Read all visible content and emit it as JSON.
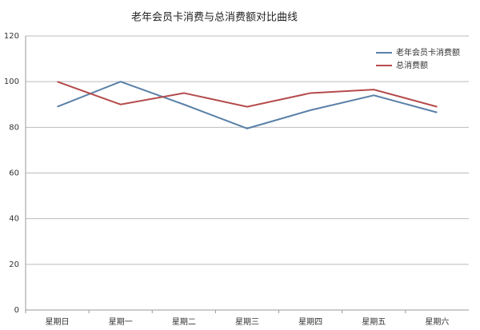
{
  "chart_data": {
    "type": "line",
    "title": "老年会员卡消费与总消费额对比曲线",
    "categories": [
      "星期日",
      "星期一",
      "星期二",
      "星期三",
      "星期四",
      "星期五",
      "星期六"
    ],
    "series": [
      {
        "name": "老年会员卡消费额",
        "color": "#5a80a8",
        "values": [
          89,
          100,
          90,
          79.5,
          87.5,
          94,
          86.5
        ]
      },
      {
        "name": "总消费额",
        "color": "#b54a4b",
        "values": [
          100,
          90,
          95,
          89,
          95,
          96.5,
          89
        ]
      }
    ],
    "ylim": [
      0,
      120
    ],
    "yticks": [
      0,
      20,
      40,
      60,
      80,
      100,
      120
    ],
    "grid": true,
    "legend": "top-right"
  }
}
